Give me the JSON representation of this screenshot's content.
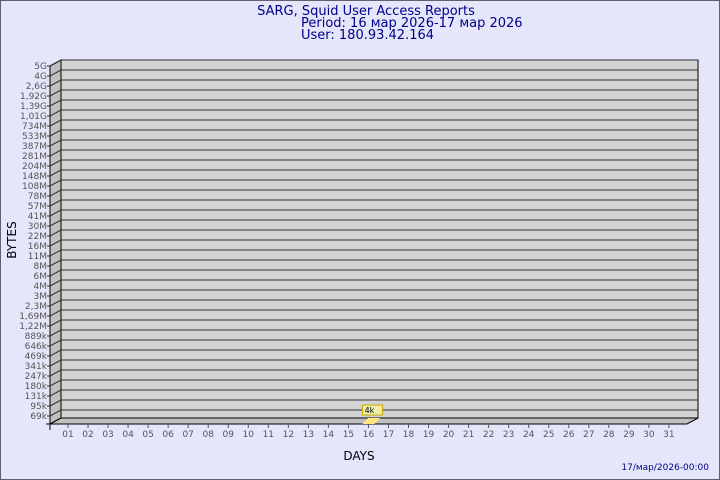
{
  "header": {
    "title": "SARG, Squid User Access Reports",
    "period": "Period: 16 мар 2026-17 мар 2026",
    "user": "User: 180.93.42.164"
  },
  "footer": {
    "timestamp": "17/мар/2026-00:00"
  },
  "colors": {
    "background": "#e6e6fa",
    "plot": "#d3d3d3",
    "bar": "#ffe680",
    "title": "#00008b"
  },
  "chart_data": {
    "type": "bar",
    "title": "SARG, Squid User Access Reports",
    "xlabel": "DAYS",
    "ylabel": "BYTES",
    "categories": [
      "01",
      "02",
      "03",
      "04",
      "05",
      "06",
      "07",
      "08",
      "09",
      "10",
      "11",
      "12",
      "13",
      "14",
      "15",
      "16",
      "17",
      "18",
      "19",
      "20",
      "21",
      "22",
      "23",
      "24",
      "25",
      "26",
      "27",
      "28",
      "29",
      "30",
      "31"
    ],
    "y_tick_labels": [
      "69k",
      "95k",
      "131k",
      "180k",
      "247k",
      "341k",
      "469k",
      "646k",
      "889k",
      "1,22M",
      "1,69M",
      "2,3M",
      "3M",
      "4M",
      "6M",
      "8M",
      "11M",
      "16M",
      "22M",
      "30M",
      "41M",
      "57M",
      "78M",
      "108M",
      "148M",
      "204M",
      "281M",
      "387M",
      "533M",
      "734M",
      "1,01G",
      "1,39G",
      "1,92G",
      "2,6G",
      "4G",
      "5G"
    ],
    "y_scale": "log",
    "grid": true,
    "series": [
      {
        "values": [
          null,
          null,
          null,
          null,
          null,
          null,
          null,
          null,
          null,
          null,
          null,
          null,
          null,
          null,
          null,
          4000,
          null,
          null,
          null,
          null,
          null,
          null,
          null,
          null,
          null,
          null,
          null,
          null,
          null,
          null,
          null
        ]
      }
    ],
    "data_labels": {
      "16": "4k"
    }
  }
}
